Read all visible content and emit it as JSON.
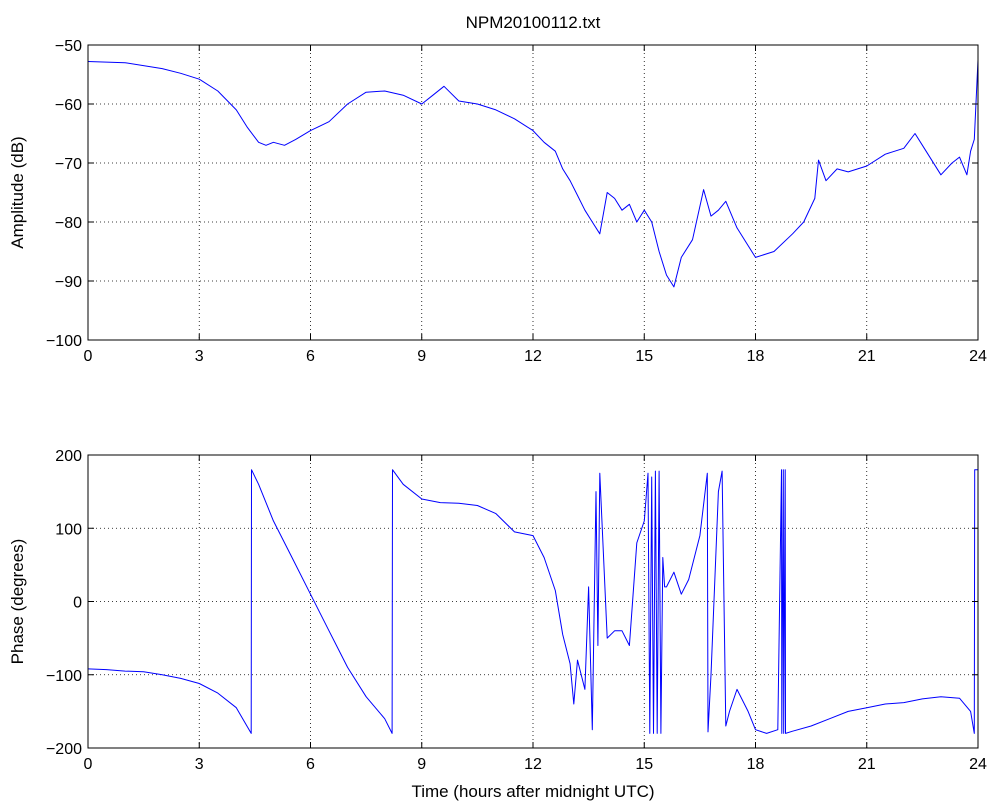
{
  "figure": {
    "title": "NPM20100112.txt"
  },
  "chart_data": [
    {
      "type": "line",
      "title": "NPM20100112.txt",
      "xlabel": "",
      "ylabel": "Amplitude (dB)",
      "xlim": [
        0,
        24
      ],
      "ylim": [
        -100,
        -50
      ],
      "xticks": [
        "0",
        "3",
        "6",
        "9",
        "12",
        "15",
        "18",
        "21",
        "24"
      ],
      "yticks": [
        "−50",
        "−60",
        "−70",
        "−80",
        "−90",
        "−100"
      ],
      "grid": true,
      "color": "#0000ff",
      "series": [
        {
          "x": [
            0,
            1,
            2,
            2.5,
            3,
            3.5,
            4,
            4.3,
            4.6,
            4.8,
            5,
            5.3,
            5.6,
            6,
            6.5,
            7,
            7.5,
            8,
            8.5,
            9,
            9.3,
            9.6,
            10,
            10.5,
            11,
            11.5,
            12,
            12.3,
            12.6,
            12.8,
            13,
            13.2,
            13.4,
            13.6,
            13.8,
            14,
            14.2,
            14.4,
            14.6,
            14.8,
            15,
            15.2,
            15.4,
            15.6,
            15.8,
            16,
            16.3,
            16.6,
            16.8,
            17,
            17.2,
            17.5,
            18,
            18.5,
            19,
            19.3,
            19.6,
            19.7,
            19.9,
            20.2,
            20.5,
            21,
            21.5,
            22,
            22.3,
            22.6,
            23,
            23.3,
            23.5,
            23.7,
            23.8,
            23.9,
            24
          ],
          "y": [
            -52.8,
            -53,
            -54,
            -54.8,
            -55.8,
            -57.8,
            -61,
            -64,
            -66.5,
            -67,
            -66.5,
            -67,
            -66,
            -64.5,
            -63,
            -60,
            -58,
            -57.8,
            -58.5,
            -60,
            -58.5,
            -57,
            -59.5,
            -60,
            -61,
            -62.5,
            -64.5,
            -66.5,
            -68,
            -71,
            -73,
            -75.5,
            -78,
            -80,
            -82,
            -75,
            -76,
            -78,
            -77,
            -80,
            -78,
            -80,
            -85,
            -89,
            -91,
            -86,
            -83,
            -74.5,
            -79,
            -78,
            -76.5,
            -81,
            -86,
            -85,
            -82,
            -80,
            -76,
            -69.5,
            -73,
            -71,
            -71.5,
            -70.5,
            -68.5,
            -67.5,
            -65,
            -68,
            -72,
            -70,
            -69,
            -72,
            -68,
            -66,
            -52.5
          ]
        }
      ]
    },
    {
      "type": "line",
      "title": "",
      "xlabel": "Time (hours after midnight UTC)",
      "ylabel": "Phase (degrees)",
      "xlim": [
        0,
        24
      ],
      "ylim": [
        -200,
        200
      ],
      "xticks": [
        "0",
        "3",
        "6",
        "9",
        "12",
        "15",
        "18",
        "21",
        "24"
      ],
      "yticks": [
        "200",
        "100",
        "0",
        "−100",
        "−200"
      ],
      "grid": true,
      "color": "#0000ff",
      "series": [
        {
          "x": [
            0,
            0.5,
            1,
            1.5,
            2,
            2.5,
            3,
            3.5,
            4,
            4.4,
            4.41,
            4.6,
            5,
            5.5,
            6,
            6.5,
            7,
            7.5,
            8,
            8.2,
            8.21,
            8.5,
            9,
            9.5,
            10,
            10.5,
            11,
            11.5,
            12,
            12.3,
            12.6,
            12.8,
            13,
            13.1,
            13.2,
            13.4,
            13.5,
            13.6,
            13.7,
            13.75,
            13.8,
            14,
            14.2,
            14.4,
            14.6,
            14.8,
            15,
            15.1,
            15.15,
            15.2,
            15.25,
            15.3,
            15.35,
            15.4,
            15.45,
            15.5,
            15.55,
            15.6,
            15.8,
            16,
            16.2,
            16.5,
            16.7,
            16.72,
            16.8,
            17,
            17.1,
            17.2,
            17.3,
            17.5,
            17.8,
            18,
            18.3,
            18.6,
            18.7,
            18.71,
            18.75,
            18.76,
            18.8,
            18.81,
            19,
            19.5,
            20,
            20.5,
            21,
            21.5,
            22,
            22.5,
            23,
            23.5,
            23.8,
            23.9,
            23.91,
            24
          ],
          "y": [
            -92,
            -93,
            -95,
            -96,
            -100,
            -105,
            -112,
            -125,
            -145,
            -180,
            180,
            160,
            110,
            60,
            10,
            -40,
            -90,
            -130,
            -160,
            -180,
            180,
            160,
            140,
            135,
            134,
            131,
            120,
            95,
            90,
            60,
            15,
            -45,
            -85,
            -140,
            -80,
            -120,
            20,
            -175,
            150,
            -60,
            175,
            -50,
            -40,
            -40,
            -60,
            80,
            110,
            175,
            -180,
            170,
            -180,
            178,
            -180,
            178,
            -180,
            60,
            20,
            20,
            40,
            10,
            30,
            90,
            175,
            -178,
            -100,
            150,
            178,
            -170,
            -150,
            -120,
            -150,
            -175,
            -180,
            -175,
            180,
            -180,
            180,
            -180,
            180,
            -180,
            -177,
            -170,
            -160,
            -150,
            -145,
            -140,
            -138,
            -133,
            -130,
            -132,
            -150,
            -180,
            180,
            180
          ]
        }
      ]
    }
  ]
}
